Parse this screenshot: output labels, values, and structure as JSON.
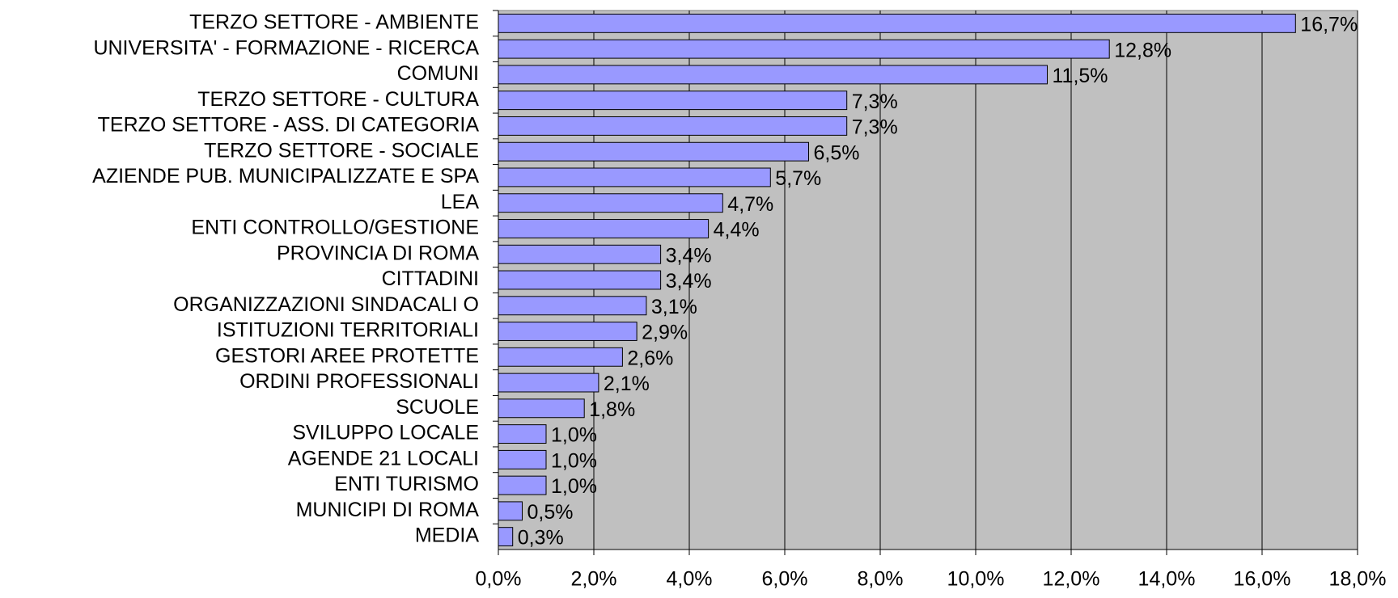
{
  "chart_data": {
    "type": "bar",
    "orientation": "horizontal",
    "categories": [
      "TERZO SETTORE - AMBIENTE",
      "UNIVERSITA' - FORMAZIONE - RICERCA",
      "COMUNI",
      "TERZO SETTORE - CULTURA",
      "TERZO SETTORE - ASS. DI CATEGORIA",
      "TERZO SETTORE - SOCIALE",
      "AZIENDE PUB. MUNICIPALIZZATE E SPA",
      "LEA",
      "ENTI CONTROLLO/GESTIONE",
      "PROVINCIA DI ROMA",
      "CITTADINI",
      "ORGANIZZAZIONI SINDACALI O",
      "ISTITUZIONI TERRITORIALI",
      "GESTORI AREE PROTETTE",
      "ORDINI PROFESSIONALI",
      "SCUOLE",
      "SVILUPPO LOCALE",
      "AGENDE 21 LOCALI",
      "ENTI TURISMO",
      "MUNICIPI DI ROMA",
      "MEDIA"
    ],
    "values": [
      16.7,
      12.8,
      11.5,
      7.3,
      7.3,
      6.5,
      5.7,
      4.7,
      4.4,
      3.4,
      3.4,
      3.1,
      2.9,
      2.6,
      2.1,
      1.8,
      1.0,
      1.0,
      1.0,
      0.5,
      0.3
    ],
    "value_labels": [
      "16,7%",
      "12,8%",
      "11,5%",
      "7,3%",
      "7,3%",
      "6,5%",
      "5,7%",
      "4,7%",
      "4,4%",
      "3,4%",
      "3,4%",
      "3,1%",
      "2,9%",
      "2,6%",
      "2,1%",
      "1,8%",
      "1,0%",
      "1,0%",
      "1,0%",
      "0,5%",
      "0,3%"
    ],
    "color": "#9999ff",
    "xlim": [
      0,
      18
    ],
    "xticks": [
      {
        "value": 0,
        "label": "0,0%"
      },
      {
        "value": 2,
        "label": "2,0%"
      },
      {
        "value": 4,
        "label": "4,0%"
      },
      {
        "value": 6,
        "label": "6,0%"
      },
      {
        "value": 8,
        "label": "8,0%"
      },
      {
        "value": 10,
        "label": "10,0%"
      },
      {
        "value": 12,
        "label": "12,0%"
      },
      {
        "value": 14,
        "label": "14,0%"
      },
      {
        "value": 16,
        "label": "16,0%"
      },
      {
        "value": 18,
        "label": "18,0%"
      }
    ],
    "grid": true
  }
}
